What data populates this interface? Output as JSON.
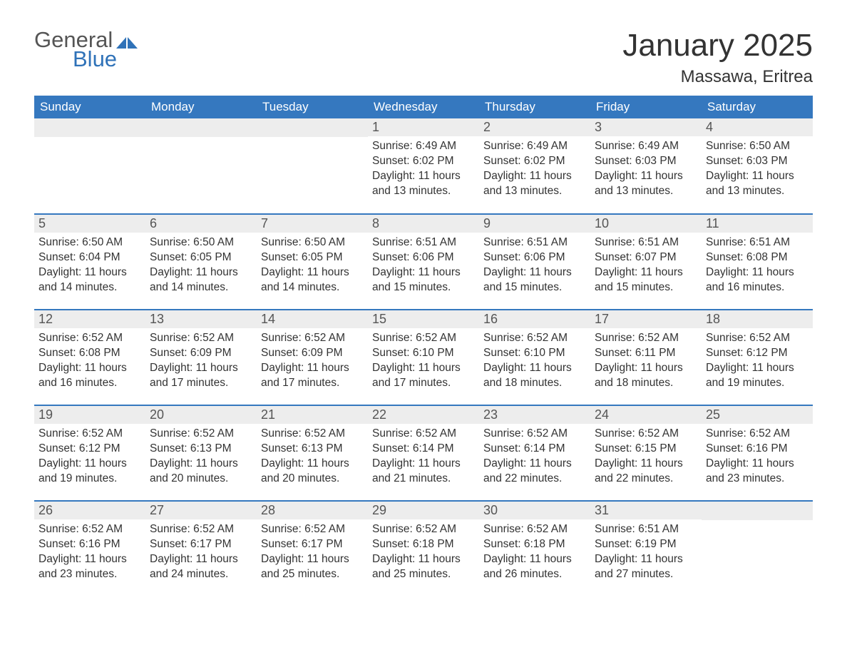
{
  "logo": {
    "word1": "General",
    "word2": "Blue"
  },
  "title": "January 2025",
  "location": "Massawa, Eritrea",
  "colors": {
    "header_bg": "#3578bf",
    "header_text": "#ffffff",
    "daynum_bg": "#ededed",
    "row_border": "#3578bf",
    "text": "#333333",
    "logo_word1": "#555555",
    "logo_word2": "#2f72b8",
    "background": "#ffffff"
  },
  "typography": {
    "month_title_fontsize": 44,
    "location_fontsize": 24,
    "weekday_fontsize": 17,
    "daynum_fontsize": 18,
    "body_fontsize": 15.5,
    "font_family": "Segoe UI"
  },
  "weekdays": [
    "Sunday",
    "Monday",
    "Tuesday",
    "Wednesday",
    "Thursday",
    "Friday",
    "Saturday"
  ],
  "label_sunrise": "Sunrise: ",
  "label_sunset": "Sunset: ",
  "label_daylight_prefix": "Daylight: ",
  "weeks": [
    [
      null,
      null,
      null,
      {
        "day": "1",
        "sunrise": "6:49 AM",
        "sunset": "6:02 PM",
        "daylight": "11 hours and 13 minutes."
      },
      {
        "day": "2",
        "sunrise": "6:49 AM",
        "sunset": "6:02 PM",
        "daylight": "11 hours and 13 minutes."
      },
      {
        "day": "3",
        "sunrise": "6:49 AM",
        "sunset": "6:03 PM",
        "daylight": "11 hours and 13 minutes."
      },
      {
        "day": "4",
        "sunrise": "6:50 AM",
        "sunset": "6:03 PM",
        "daylight": "11 hours and 13 minutes."
      }
    ],
    [
      {
        "day": "5",
        "sunrise": "6:50 AM",
        "sunset": "6:04 PM",
        "daylight": "11 hours and 14 minutes."
      },
      {
        "day": "6",
        "sunrise": "6:50 AM",
        "sunset": "6:05 PM",
        "daylight": "11 hours and 14 minutes."
      },
      {
        "day": "7",
        "sunrise": "6:50 AM",
        "sunset": "6:05 PM",
        "daylight": "11 hours and 14 minutes."
      },
      {
        "day": "8",
        "sunrise": "6:51 AM",
        "sunset": "6:06 PM",
        "daylight": "11 hours and 15 minutes."
      },
      {
        "day": "9",
        "sunrise": "6:51 AM",
        "sunset": "6:06 PM",
        "daylight": "11 hours and 15 minutes."
      },
      {
        "day": "10",
        "sunrise": "6:51 AM",
        "sunset": "6:07 PM",
        "daylight": "11 hours and 15 minutes."
      },
      {
        "day": "11",
        "sunrise": "6:51 AM",
        "sunset": "6:08 PM",
        "daylight": "11 hours and 16 minutes."
      }
    ],
    [
      {
        "day": "12",
        "sunrise": "6:52 AM",
        "sunset": "6:08 PM",
        "daylight": "11 hours and 16 minutes."
      },
      {
        "day": "13",
        "sunrise": "6:52 AM",
        "sunset": "6:09 PM",
        "daylight": "11 hours and 17 minutes."
      },
      {
        "day": "14",
        "sunrise": "6:52 AM",
        "sunset": "6:09 PM",
        "daylight": "11 hours and 17 minutes."
      },
      {
        "day": "15",
        "sunrise": "6:52 AM",
        "sunset": "6:10 PM",
        "daylight": "11 hours and 17 minutes."
      },
      {
        "day": "16",
        "sunrise": "6:52 AM",
        "sunset": "6:10 PM",
        "daylight": "11 hours and 18 minutes."
      },
      {
        "day": "17",
        "sunrise": "6:52 AM",
        "sunset": "6:11 PM",
        "daylight": "11 hours and 18 minutes."
      },
      {
        "day": "18",
        "sunrise": "6:52 AM",
        "sunset": "6:12 PM",
        "daylight": "11 hours and 19 minutes."
      }
    ],
    [
      {
        "day": "19",
        "sunrise": "6:52 AM",
        "sunset": "6:12 PM",
        "daylight": "11 hours and 19 minutes."
      },
      {
        "day": "20",
        "sunrise": "6:52 AM",
        "sunset": "6:13 PM",
        "daylight": "11 hours and 20 minutes."
      },
      {
        "day": "21",
        "sunrise": "6:52 AM",
        "sunset": "6:13 PM",
        "daylight": "11 hours and 20 minutes."
      },
      {
        "day": "22",
        "sunrise": "6:52 AM",
        "sunset": "6:14 PM",
        "daylight": "11 hours and 21 minutes."
      },
      {
        "day": "23",
        "sunrise": "6:52 AM",
        "sunset": "6:14 PM",
        "daylight": "11 hours and 22 minutes."
      },
      {
        "day": "24",
        "sunrise": "6:52 AM",
        "sunset": "6:15 PM",
        "daylight": "11 hours and 22 minutes."
      },
      {
        "day": "25",
        "sunrise": "6:52 AM",
        "sunset": "6:16 PM",
        "daylight": "11 hours and 23 minutes."
      }
    ],
    [
      {
        "day": "26",
        "sunrise": "6:52 AM",
        "sunset": "6:16 PM",
        "daylight": "11 hours and 23 minutes."
      },
      {
        "day": "27",
        "sunrise": "6:52 AM",
        "sunset": "6:17 PM",
        "daylight": "11 hours and 24 minutes."
      },
      {
        "day": "28",
        "sunrise": "6:52 AM",
        "sunset": "6:17 PM",
        "daylight": "11 hours and 25 minutes."
      },
      {
        "day": "29",
        "sunrise": "6:52 AM",
        "sunset": "6:18 PM",
        "daylight": "11 hours and 25 minutes."
      },
      {
        "day": "30",
        "sunrise": "6:52 AM",
        "sunset": "6:18 PM",
        "daylight": "11 hours and 26 minutes."
      },
      {
        "day": "31",
        "sunrise": "6:51 AM",
        "sunset": "6:19 PM",
        "daylight": "11 hours and 27 minutes."
      },
      null
    ]
  ]
}
